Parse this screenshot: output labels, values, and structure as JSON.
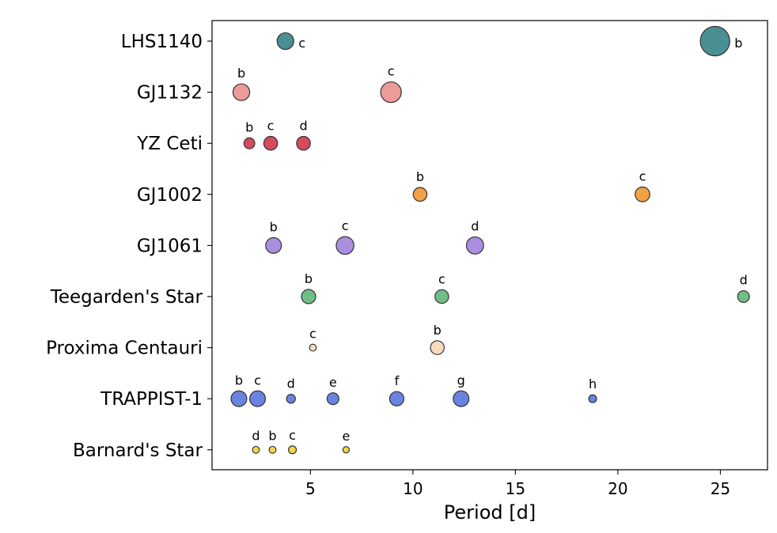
{
  "chart_data": {
    "type": "scatter",
    "title": "",
    "xlabel": "Period [d]",
    "ylabel": "",
    "xlim": [
      0.2,
      27.3
    ],
    "xticks": [
      5,
      10,
      15,
      20,
      25
    ],
    "grid": false,
    "legend": "none",
    "categories": [
      "LHS1140",
      "GJ1132",
      "YZ Ceti",
      "GJ1002",
      "GJ1061",
      "Teegarden's Star",
      "Proxima Centauri",
      "TRAPPIST-1",
      "Barnard's Star"
    ],
    "series": [
      {
        "system": "LHS1140",
        "color": "#4a8f92",
        "planets": [
          {
            "label": "c",
            "period": 3.78,
            "size": 1.7,
            "label_pos": "right"
          },
          {
            "label": "b",
            "period": 24.74,
            "size": 3.0,
            "label_pos": "right"
          }
        ]
      },
      {
        "system": "GJ1132",
        "color": "#ec9a9a",
        "planets": [
          {
            "label": "b",
            "period": 1.63,
            "size": 1.7,
            "label_pos": "above"
          },
          {
            "label": "c",
            "period": 8.93,
            "size": 2.1,
            "label_pos": "above"
          }
        ]
      },
      {
        "system": "YZ Ceti",
        "color": "#d44a5e",
        "planets": [
          {
            "label": "b",
            "period": 2.02,
            "size": 1.1,
            "label_pos": "above"
          },
          {
            "label": "c",
            "period": 3.06,
            "size": 1.4,
            "label_pos": "above"
          },
          {
            "label": "d",
            "period": 4.66,
            "size": 1.4,
            "label_pos": "above"
          }
        ]
      },
      {
        "system": "GJ1002",
        "color": "#f0a245",
        "planets": [
          {
            "label": "b",
            "period": 10.35,
            "size": 1.4,
            "label_pos": "above"
          },
          {
            "label": "c",
            "period": 21.2,
            "size": 1.5,
            "label_pos": "above"
          }
        ]
      },
      {
        "system": "GJ1061",
        "color": "#a98fde",
        "planets": [
          {
            "label": "b",
            "period": 3.2,
            "size": 1.6,
            "label_pos": "above"
          },
          {
            "label": "c",
            "period": 6.69,
            "size": 1.8,
            "label_pos": "above"
          },
          {
            "label": "d",
            "period": 13.03,
            "size": 1.75,
            "label_pos": "above"
          }
        ]
      },
      {
        "system": "Teegarden's Star",
        "color": "#6fbd87",
        "planets": [
          {
            "label": "b",
            "period": 4.91,
            "size": 1.45,
            "label_pos": "above"
          },
          {
            "label": "c",
            "period": 11.41,
            "size": 1.4,
            "label_pos": "above"
          },
          {
            "label": "d",
            "period": 26.13,
            "size": 1.2,
            "label_pos": "above"
          }
        ]
      },
      {
        "system": "Proxima Centauri",
        "color": "#f8dcc0",
        "planets": [
          {
            "label": "c",
            "period": 5.12,
            "size": 0.7,
            "label_pos": "above"
          },
          {
            "label": "b",
            "period": 11.19,
            "size": 1.4,
            "label_pos": "above"
          }
        ]
      },
      {
        "system": "TRAPPIST-1",
        "color": "#6a82e0",
        "planets": [
          {
            "label": "b",
            "period": 1.51,
            "size": 1.6,
            "label_pos": "above"
          },
          {
            "label": "c",
            "period": 2.42,
            "size": 1.6,
            "label_pos": "above"
          },
          {
            "label": "d",
            "period": 4.05,
            "size": 0.9,
            "label_pos": "above"
          },
          {
            "label": "e",
            "period": 6.1,
            "size": 1.2,
            "label_pos": "above"
          },
          {
            "label": "f",
            "period": 9.21,
            "size": 1.45,
            "label_pos": "above"
          },
          {
            "label": "g",
            "period": 12.35,
            "size": 1.6,
            "label_pos": "above"
          },
          {
            "label": "h",
            "period": 18.77,
            "size": 0.8,
            "label_pos": "above"
          }
        ]
      },
      {
        "system": "Barnard's Star",
        "color": "#f5d547",
        "planets": [
          {
            "label": "d",
            "period": 2.34,
            "size": 0.7,
            "label_pos": "above"
          },
          {
            "label": "b",
            "period": 3.15,
            "size": 0.7,
            "label_pos": "above"
          },
          {
            "label": "c",
            "period": 4.12,
            "size": 0.8,
            "label_pos": "above"
          },
          {
            "label": "e",
            "period": 6.74,
            "size": 0.65,
            "label_pos": "above"
          }
        ]
      }
    ]
  }
}
